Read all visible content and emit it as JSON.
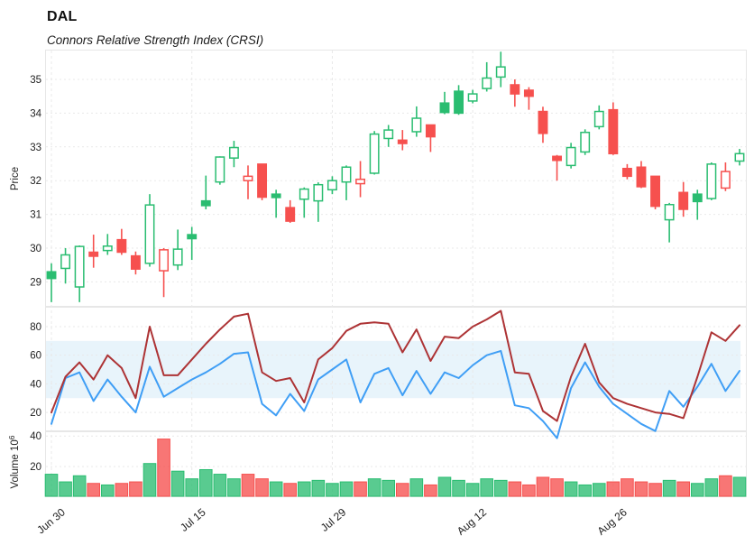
{
  "header": {
    "title": "DAL",
    "subtitle": "Connors Relative Strength Index (CRSI)"
  },
  "colors": {
    "up": "#2abd71",
    "down": "#f6504e",
    "crsi_primary": "#ad3335",
    "crsi_secondary": "#3f9ef5",
    "band_fill": "#e8f4fb",
    "grid": "#e9e9e9",
    "panel_border": "#e7e7e7",
    "text": "#1f1f1f",
    "hollow_fill": "#ffffff"
  },
  "axes": {
    "price": {
      "title": "Price",
      "ticks": [
        35,
        34,
        33,
        32,
        31,
        30,
        29
      ]
    },
    "crsi": {
      "ticks": [
        80,
        60,
        40,
        20
      ]
    },
    "volume": {
      "title_base": "Volume  10",
      "title_exponent": "6",
      "ticks": [
        40,
        20
      ]
    },
    "x": {
      "labels": [
        "Jun 30",
        "Jul 15",
        "Jul 29",
        "Aug 12",
        "Aug 26"
      ],
      "tick_indices": [
        0,
        10,
        20,
        30,
        40
      ]
    }
  },
  "chart_data": [
    {
      "type": "candlestick",
      "panel": "price",
      "ylabel": "Price",
      "yticks": [
        29,
        30,
        31,
        32,
        33,
        34,
        35
      ],
      "ylim": [
        28.26,
        35.88
      ],
      "x_tick_labels": [
        "Jun 30",
        "Jul 15",
        "Jul 29",
        "Aug 12",
        "Aug 26"
      ],
      "x_tick_indices": [
        0,
        10,
        20,
        30,
        40
      ],
      "ohlc_legend": [
        "open",
        "high",
        "low",
        "close",
        "direction",
        "body"
      ],
      "ohlc": [
        [
          29.3,
          29.55,
          28.4,
          29.1,
          "up",
          "filled"
        ],
        [
          29.4,
          30.0,
          28.95,
          29.8,
          "up",
          "hollow"
        ],
        [
          28.85,
          30.08,
          28.4,
          30.05,
          "up",
          "hollow"
        ],
        [
          29.88,
          30.4,
          29.42,
          29.76,
          "down",
          "filled"
        ],
        [
          29.93,
          30.42,
          29.8,
          30.06,
          "up",
          "hollow"
        ],
        [
          30.25,
          30.57,
          29.8,
          29.88,
          "down",
          "filled"
        ],
        [
          29.77,
          29.9,
          29.22,
          29.38,
          "down",
          "filled"
        ],
        [
          29.55,
          31.6,
          29.45,
          31.28,
          "up",
          "hollow"
        ],
        [
          29.33,
          30.0,
          28.55,
          29.95,
          "down",
          "hollow"
        ],
        [
          29.5,
          30.55,
          29.35,
          29.97,
          "up",
          "hollow"
        ],
        [
          30.4,
          30.63,
          29.65,
          30.28,
          "up",
          "filled"
        ],
        [
          31.4,
          32.15,
          31.15,
          31.26,
          "up",
          "filled"
        ],
        [
          31.96,
          32.72,
          31.88,
          32.7,
          "up",
          "hollow"
        ],
        [
          32.67,
          33.18,
          32.4,
          32.98,
          "up",
          "hollow"
        ],
        [
          32.0,
          32.45,
          31.45,
          32.13,
          "down",
          "hollow"
        ],
        [
          32.49,
          32.49,
          31.42,
          31.51,
          "down",
          "filled"
        ],
        [
          31.6,
          31.73,
          30.9,
          31.5,
          "up",
          "filled"
        ],
        [
          31.2,
          31.42,
          30.75,
          30.8,
          "down",
          "filled"
        ],
        [
          31.45,
          31.8,
          30.9,
          31.75,
          "up",
          "hollow"
        ],
        [
          31.4,
          31.95,
          30.78,
          31.88,
          "up",
          "hollow"
        ],
        [
          31.73,
          32.13,
          31.6,
          32.0,
          "up",
          "hollow"
        ],
        [
          31.96,
          32.45,
          31.42,
          32.4,
          "up",
          "hollow"
        ],
        [
          31.91,
          32.58,
          31.51,
          32.04,
          "down",
          "hollow"
        ],
        [
          32.22,
          33.47,
          32.18,
          33.38,
          "up",
          "hollow"
        ],
        [
          33.25,
          33.65,
          33.0,
          33.5,
          "up",
          "hollow"
        ],
        [
          33.2,
          33.5,
          32.9,
          33.1,
          "down",
          "filled"
        ],
        [
          33.45,
          34.2,
          33.3,
          33.85,
          "up",
          "hollow"
        ],
        [
          33.65,
          33.65,
          32.85,
          33.3,
          "down",
          "filled"
        ],
        [
          34.3,
          34.63,
          33.97,
          34.02,
          "up",
          "filled"
        ],
        [
          34.65,
          34.83,
          33.95,
          34.0,
          "up",
          "filled"
        ],
        [
          34.36,
          34.69,
          34.29,
          34.57,
          "up",
          "hollow"
        ],
        [
          34.73,
          35.51,
          34.64,
          35.04,
          "up",
          "hollow"
        ],
        [
          35.07,
          35.82,
          34.77,
          35.37,
          "up",
          "hollow"
        ],
        [
          34.84,
          35.0,
          34.19,
          34.57,
          "down",
          "filled"
        ],
        [
          34.68,
          34.77,
          34.1,
          34.5,
          "down",
          "filled"
        ],
        [
          34.05,
          34.19,
          33.12,
          33.4,
          "down",
          "filled"
        ],
        [
          32.72,
          32.76,
          32.0,
          32.6,
          "down",
          "filled"
        ],
        [
          32.45,
          33.12,
          32.36,
          32.98,
          "up",
          "hollow"
        ],
        [
          32.85,
          33.52,
          32.76,
          33.43,
          "up",
          "hollow"
        ],
        [
          33.6,
          34.23,
          33.52,
          34.05,
          "up",
          "hollow"
        ],
        [
          34.1,
          34.32,
          32.76,
          32.8,
          "down",
          "filled"
        ],
        [
          32.36,
          32.49,
          32.04,
          32.13,
          "down",
          "filled"
        ],
        [
          32.4,
          32.58,
          31.78,
          31.82,
          "down",
          "filled"
        ],
        [
          32.13,
          32.13,
          31.15,
          31.24,
          "down",
          "filled"
        ],
        [
          30.84,
          31.34,
          30.17,
          31.29,
          "up",
          "hollow"
        ],
        [
          31.65,
          31.96,
          30.93,
          31.15,
          "down",
          "filled"
        ],
        [
          31.6,
          31.73,
          30.84,
          31.38,
          "up",
          "filled"
        ],
        [
          31.47,
          32.54,
          31.42,
          32.49,
          "up",
          "hollow"
        ],
        [
          31.78,
          32.54,
          31.69,
          32.27,
          "down",
          "hollow"
        ],
        [
          32.58,
          32.94,
          32.45,
          32.8,
          "up",
          "hollow"
        ]
      ]
    },
    {
      "type": "line",
      "panel": "crsi",
      "yticks": [
        20,
        40,
        60,
        80
      ],
      "ylim": [
        0,
        95
      ],
      "band": {
        "from": 30,
        "to": 70
      },
      "series": [
        {
          "name": "crsi-secondary-line",
          "color": "#3f9ef5",
          "values": [
            12,
            44,
            48,
            28,
            43,
            31,
            20,
            52,
            31,
            37,
            43,
            48,
            54,
            61,
            62,
            26,
            18,
            33,
            21,
            43,
            50,
            57,
            27,
            47,
            51,
            32,
            49,
            33,
            48,
            44,
            53,
            60,
            63,
            25,
            23,
            14,
            2,
            37,
            55,
            38,
            26,
            19,
            12,
            7,
            35,
            24,
            38,
            54,
            35,
            49
          ]
        },
        {
          "name": "crsi-primary-line",
          "color": "#ad3335",
          "values": [
            20,
            45,
            55,
            43,
            60,
            51,
            30,
            80,
            46,
            46,
            57,
            68,
            78,
            87,
            89,
            48,
            42,
            44,
            27,
            57,
            65,
            77,
            82,
            83,
            82,
            62,
            78,
            56,
            73,
            72,
            80,
            85,
            91,
            48,
            47,
            21,
            14,
            45,
            68,
            41,
            30,
            26,
            23,
            20,
            19,
            16,
            45,
            76,
            70,
            81
          ]
        }
      ]
    },
    {
      "type": "bar",
      "panel": "volume",
      "ylabel": "Volume 10⁶",
      "yticks": [
        20,
        40
      ],
      "ylim": [
        0,
        43
      ],
      "values": [
        15,
        10,
        14,
        9,
        8,
        9,
        10,
        22,
        38,
        17,
        12,
        18,
        15,
        12,
        15,
        12,
        10,
        9,
        10,
        11,
        9,
        10,
        10,
        12,
        11,
        9,
        12,
        8,
        13,
        11,
        9,
        12,
        11,
        10,
        8,
        13,
        12,
        10,
        8,
        9,
        10,
        12,
        10,
        9,
        11,
        10,
        9,
        12,
        14,
        13
      ],
      "bar_color_rule": "matches candle direction (up=green, down=red)"
    }
  ]
}
